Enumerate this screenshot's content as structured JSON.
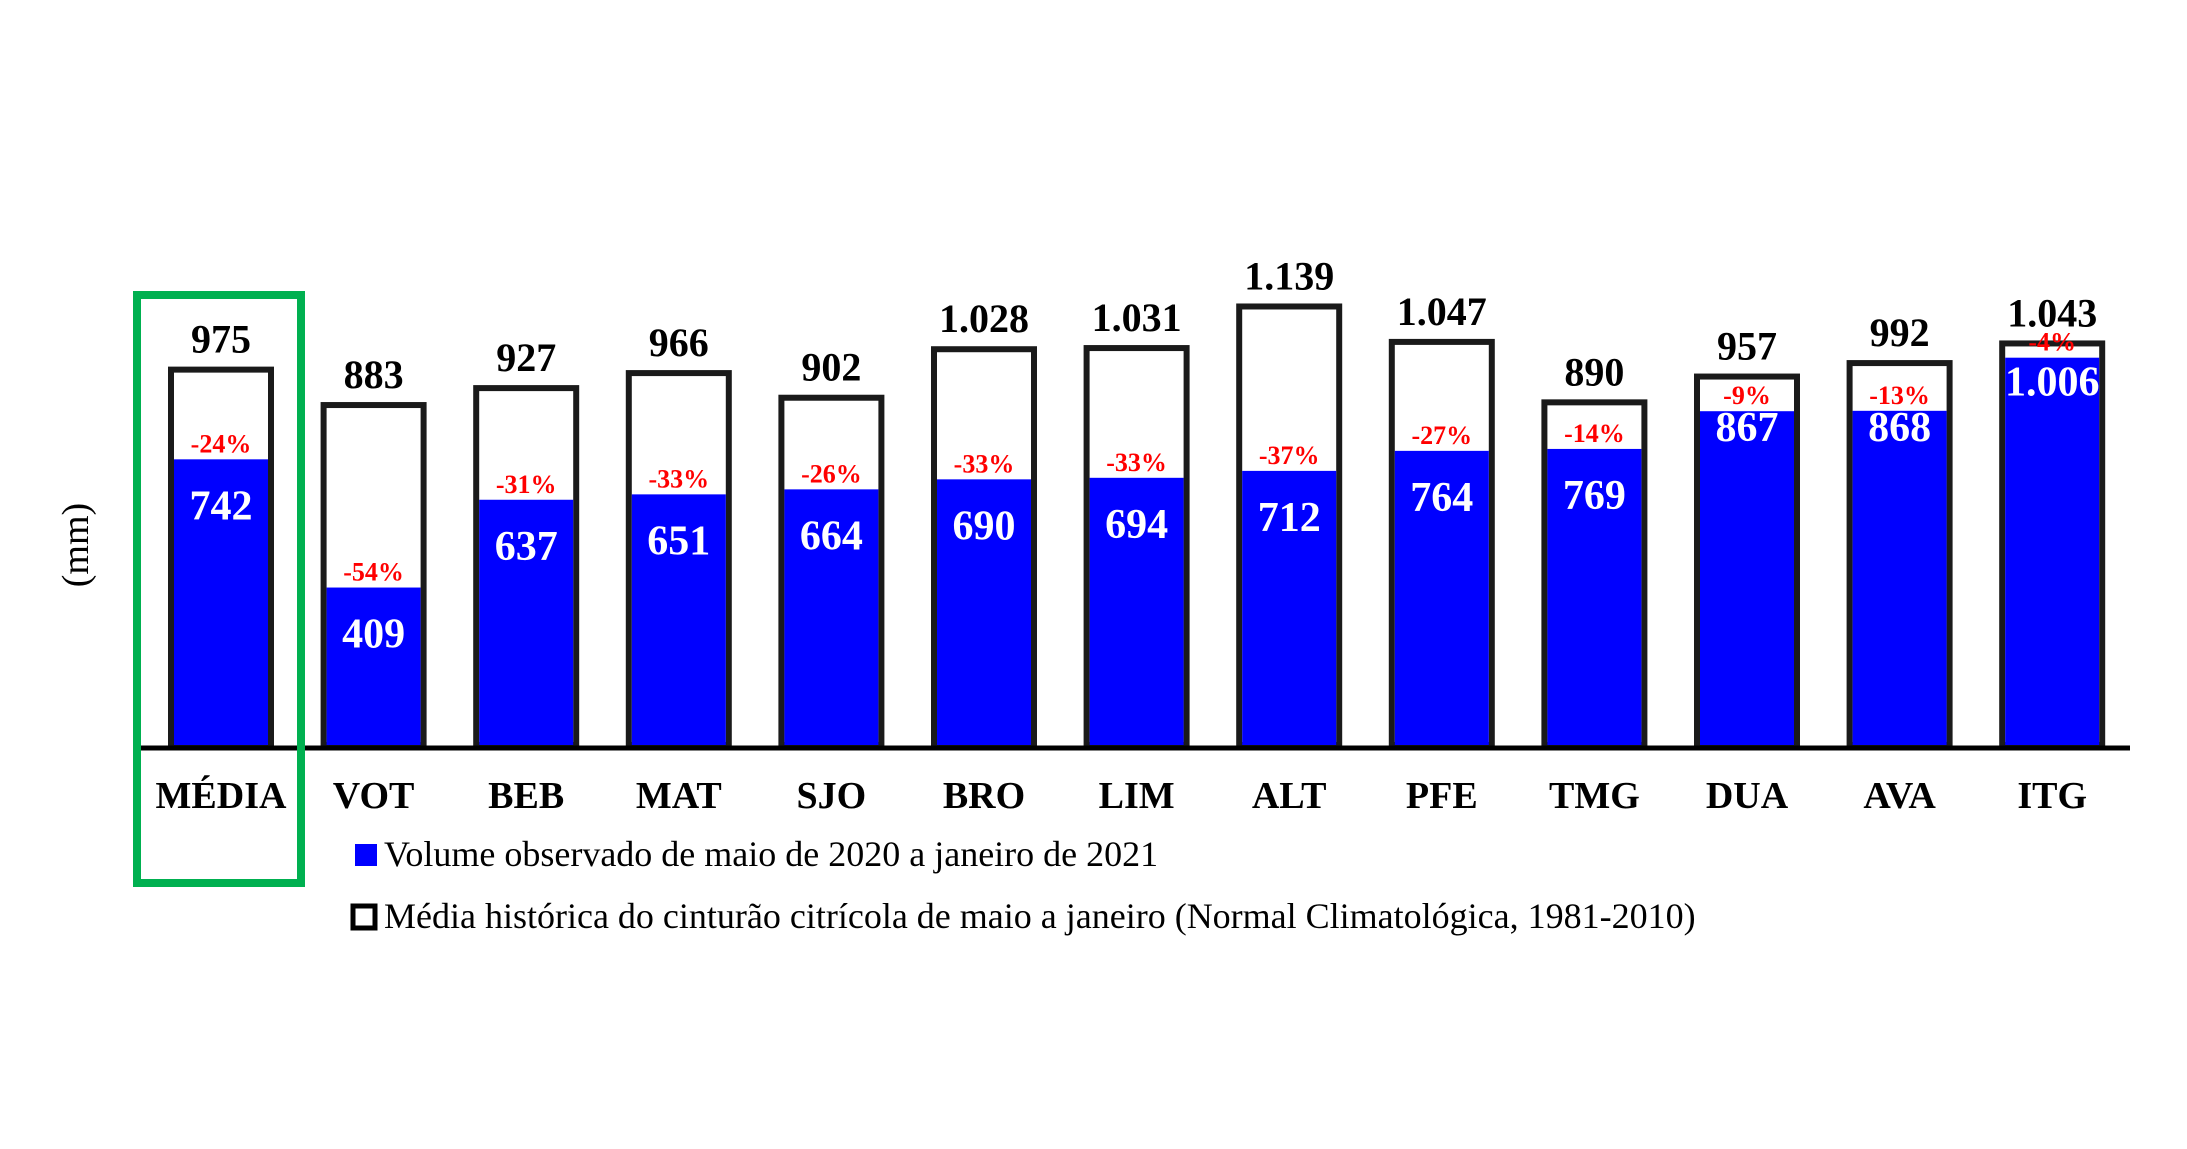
{
  "chart_data": {
    "type": "bar",
    "ylabel": "(mm)",
    "categories": [
      "MÉDIA",
      "VOT",
      "BEB",
      "MAT",
      "SJO",
      "BRO",
      "LIM",
      "ALT",
      "PFE",
      "TMG",
      "DUA",
      "AVA",
      "ITG"
    ],
    "series": [
      {
        "name": "Volume observado de maio de 2020 a janeiro de 2021",
        "values": [
          742,
          409,
          637,
          651,
          664,
          690,
          694,
          712,
          764,
          769,
          867,
          868,
          1006
        ],
        "labels": [
          "742",
          "409",
          "637",
          "651",
          "664",
          "690",
          "694",
          "712",
          "764",
          "769",
          "867",
          "868",
          "1.006"
        ],
        "color": "#0000ff"
      },
      {
        "name": "Média histórica do cinturão citrícola de maio a janeiro (Normal Climatológica, 1981-2010)",
        "values": [
          975,
          883,
          927,
          966,
          902,
          1028,
          1031,
          1139,
          1047,
          890,
          957,
          992,
          1043
        ],
        "labels": [
          "975",
          "883",
          "927",
          "966",
          "902",
          "1.028",
          "1.031",
          "1.139",
          "1.047",
          "890",
          "957",
          "992",
          "1.043"
        ],
        "color": "#ffffff"
      }
    ],
    "deviation_labels": [
      "-24%",
      "-54%",
      "-31%",
      "-33%",
      "-26%",
      "-33%",
      "-33%",
      "-37%",
      "-27%",
      "-14%",
      "-9%",
      "-13%",
      "-4%"
    ],
    "highlight": {
      "category": "MÉDIA",
      "color": "#00b050"
    },
    "colors": {
      "observed": "#0000ff",
      "historic_outline": "#000000",
      "deviation": "#ff0000"
    }
  }
}
